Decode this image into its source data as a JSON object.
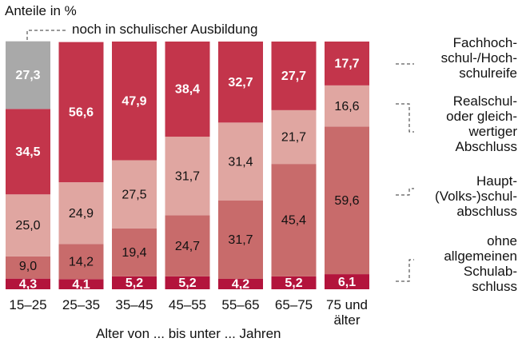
{
  "chart_data": {
    "type": "stacked_bar",
    "title": "Anteile in %",
    "x_label": "Alter von ... bis unter ... Jahren",
    "categories": [
      "15–25",
      "25–35",
      "35–45",
      "45–55",
      "55–65",
      "65–75",
      "75 und älter"
    ],
    "ylim": [
      0,
      100
    ],
    "series": [
      {
        "name": "ohne\nallgemeinen\nSchulab-\nschluss",
        "color": "#b3143c",
        "values": [
          4.3,
          4.1,
          5.2,
          5.2,
          4.2,
          5.2,
          6.1
        ],
        "value_labels": [
          "4,3",
          "4,1",
          "5,2",
          "5,2",
          "4,2",
          "5,2",
          "6,1"
        ]
      },
      {
        "name": "Haupt-\n(Volks-)schul-\nabschluss",
        "color": "#c86b6b",
        "values": [
          9.0,
          14.2,
          19.4,
          24.7,
          31.7,
          45.4,
          59.6
        ],
        "value_labels": [
          "9,0",
          "14,2",
          "19,4",
          "24,7",
          "31,7",
          "45,4",
          "59,6"
        ]
      },
      {
        "name": "Realschul-\noder gleich-\nwertiger\nAbschluss",
        "color": "#e0a6a1",
        "values": [
          25.0,
          24.9,
          27.5,
          31.7,
          31.4,
          21.7,
          16.6
        ],
        "value_labels": [
          "25,0",
          "24,9",
          "27,5",
          "31,7",
          "31,4",
          "21,7",
          "16,6"
        ]
      },
      {
        "name": "Fachhoch-\nschul-/Hoch-\nschulreife",
        "color": "#c3354b",
        "values": [
          34.5,
          56.6,
          47.9,
          38.4,
          32.7,
          27.7,
          17.7
        ],
        "value_labels": [
          "34,5",
          "56,6",
          "47,9",
          "38,4",
          "32,7",
          "27,7",
          "17,7"
        ]
      },
      {
        "name": "noch in schulischer Ausbildung",
        "color": "#a9a9a9",
        "values": [
          27.3,
          null,
          null,
          null,
          null,
          null,
          null
        ],
        "value_labels": [
          "27,3",
          null,
          null,
          null,
          null,
          null,
          null
        ]
      }
    ]
  }
}
